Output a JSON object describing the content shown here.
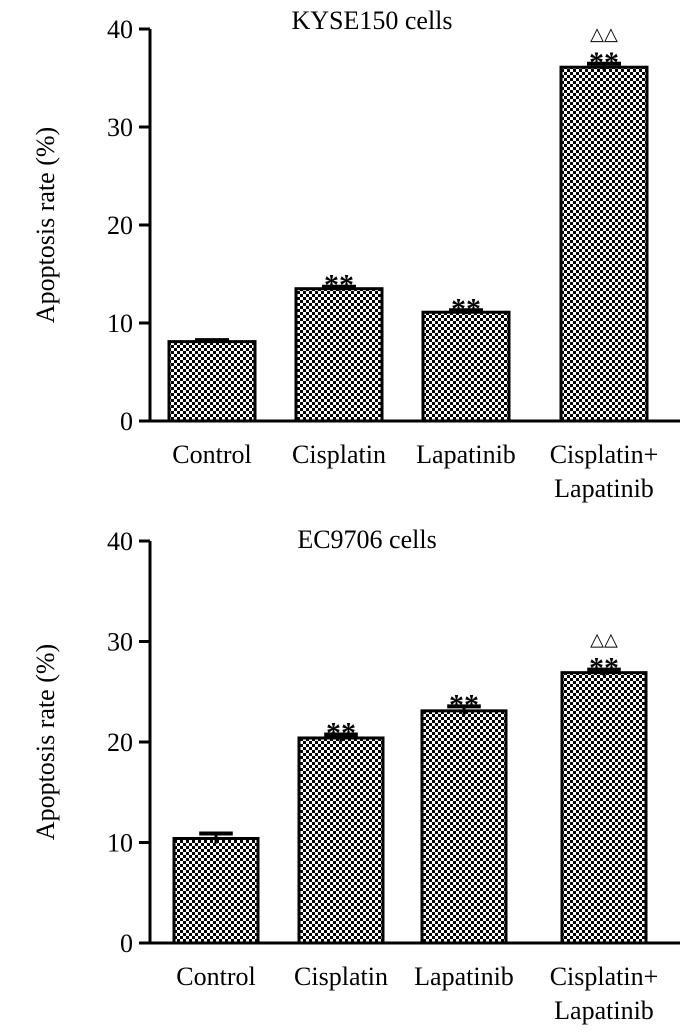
{
  "figure": {
    "pattern_colors": {
      "background": "#ffffff",
      "dots": "#000000"
    }
  },
  "chart_data": [
    {
      "type": "bar",
      "title": "KYSE150 cells",
      "ylabel": "Apoptosis rate (%)",
      "xlabel": "",
      "ylim": [
        0,
        40
      ],
      "yticks": [
        0,
        10,
        20,
        30,
        40
      ],
      "categories": [
        [
          "Control"
        ],
        [
          "Cisplatin"
        ],
        [
          "Lapatinib"
        ],
        [
          "Cisplatin+",
          "Lapatinib"
        ]
      ],
      "values": [
        8.1,
        13.5,
        11.1,
        36.1
      ],
      "errors": [
        0.15,
        0.2,
        0.2,
        0.35
      ],
      "annotations": [
        "",
        "**",
        "**",
        "**"
      ],
      "annotations2": [
        "",
        "",
        "",
        "△△"
      ]
    },
    {
      "type": "bar",
      "title": "EC9706 cells",
      "ylabel": "Apoptosis rate (%)",
      "xlabel": "",
      "ylim": [
        0,
        40
      ],
      "yticks": [
        0,
        10,
        20,
        30,
        40
      ],
      "categories": [
        [
          "Control"
        ],
        [
          "Cisplatin"
        ],
        [
          "Lapatinib"
        ],
        [
          "Cisplatin+",
          "Lapatinib"
        ]
      ],
      "values": [
        10.4,
        20.4,
        23.1,
        26.9
      ],
      "errors": [
        0.5,
        0.35,
        0.45,
        0.3
      ],
      "annotations": [
        "",
        "**",
        "**",
        "**"
      ],
      "annotations2": [
        "",
        "",
        "",
        "△△"
      ]
    }
  ]
}
